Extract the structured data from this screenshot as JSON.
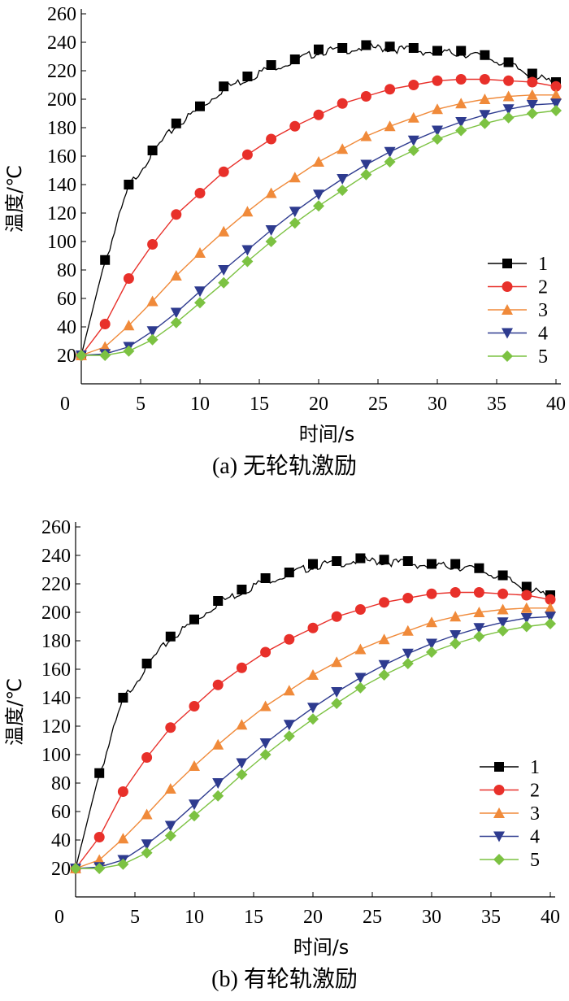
{
  "chart_data": [
    {
      "type": "line",
      "caption": "(a)  无轮轨激励",
      "xlabel": "时间/s",
      "ylabel": "温度/℃",
      "xlim": [
        0,
        40
      ],
      "ylim": [
        0,
        260
      ],
      "xticks": [
        "0",
        "5",
        "10",
        "15",
        "20",
        "25",
        "30",
        "35",
        "40"
      ],
      "yticks": [
        "20",
        "40",
        "60",
        "80",
        "100",
        "120",
        "140",
        "160",
        "180",
        "200",
        "220",
        "240",
        "260"
      ],
      "legend_position": "right",
      "series": [
        {
          "name": "1",
          "color": "#000000",
          "marker": "square",
          "x": [
            0,
            2,
            4,
            6,
            8,
            10,
            12,
            14,
            16,
            18,
            20,
            22,
            24,
            26,
            28,
            30,
            32,
            34,
            36,
            38,
            40
          ],
          "y": [
            20,
            87,
            140,
            164,
            183,
            195,
            209,
            216,
            224,
            228,
            235,
            236,
            238,
            237,
            236,
            234,
            234,
            231,
            226,
            218,
            212
          ]
        },
        {
          "name": "2",
          "color": "#e8302a",
          "marker": "circle",
          "x": [
            0,
            2,
            4,
            6,
            8,
            10,
            12,
            14,
            16,
            18,
            20,
            22,
            24,
            26,
            28,
            30,
            32,
            34,
            36,
            38,
            40
          ],
          "y": [
            20,
            42,
            74,
            98,
            119,
            134,
            149,
            161,
            172,
            181,
            189,
            197,
            202,
            207,
            210,
            213,
            214,
            214,
            213,
            212,
            209
          ]
        },
        {
          "name": "3",
          "color": "#f08a3a",
          "marker": "triangle-up",
          "x": [
            0,
            2,
            4,
            6,
            8,
            10,
            12,
            14,
            16,
            18,
            20,
            22,
            24,
            26,
            28,
            30,
            32,
            34,
            36,
            38,
            40
          ],
          "y": [
            20,
            26,
            41,
            58,
            76,
            92,
            107,
            121,
            134,
            145,
            156,
            165,
            174,
            181,
            187,
            193,
            197,
            200,
            202,
            203,
            203
          ]
        },
        {
          "name": "4",
          "color": "#2e3b8f",
          "marker": "triangle-down",
          "x": [
            0,
            2,
            4,
            6,
            8,
            10,
            12,
            14,
            16,
            18,
            20,
            22,
            24,
            26,
            28,
            30,
            32,
            34,
            36,
            38,
            40
          ],
          "y": [
            20,
            21,
            26,
            37,
            50,
            65,
            80,
            94,
            108,
            121,
            133,
            144,
            154,
            163,
            171,
            178,
            184,
            189,
            193,
            196,
            197
          ]
        },
        {
          "name": "5",
          "color": "#7cc242",
          "marker": "diamond",
          "x": [
            0,
            2,
            4,
            6,
            8,
            10,
            12,
            14,
            16,
            18,
            20,
            22,
            24,
            26,
            28,
            30,
            32,
            34,
            36,
            38,
            40
          ],
          "y": [
            20,
            20,
            23,
            31,
            43,
            57,
            71,
            86,
            100,
            113,
            125,
            136,
            147,
            156,
            164,
            172,
            178,
            183,
            187,
            190,
            192
          ]
        }
      ]
    },
    {
      "type": "line",
      "caption": "(b)  有轮轨激励",
      "xlabel": "时间/s",
      "ylabel": "温度/℃",
      "xlim": [
        0,
        40
      ],
      "ylim": [
        0,
        260
      ],
      "xticks": [
        "0",
        "5",
        "10",
        "15",
        "20",
        "25",
        "30",
        "35",
        "40"
      ],
      "yticks": [
        "20",
        "40",
        "60",
        "80",
        "100",
        "120",
        "140",
        "160",
        "180",
        "200",
        "220",
        "240",
        "260"
      ],
      "legend_position": "right",
      "series": [
        {
          "name": "1",
          "color": "#000000",
          "marker": "square",
          "x": [
            0,
            2,
            4,
            6,
            8,
            10,
            12,
            14,
            16,
            18,
            20,
            22,
            24,
            26,
            28,
            30,
            32,
            34,
            36,
            38,
            40
          ],
          "y": [
            20,
            87,
            140,
            164,
            183,
            195,
            208,
            216,
            224,
            228,
            234,
            236,
            238,
            237,
            236,
            234,
            234,
            231,
            226,
            218,
            212
          ]
        },
        {
          "name": "2",
          "color": "#e8302a",
          "marker": "circle",
          "x": [
            0,
            2,
            4,
            6,
            8,
            10,
            12,
            14,
            16,
            18,
            20,
            22,
            24,
            26,
            28,
            30,
            32,
            34,
            36,
            38,
            40
          ],
          "y": [
            20,
            42,
            74,
            98,
            119,
            134,
            149,
            161,
            172,
            181,
            189,
            197,
            202,
            207,
            210,
            213,
            214,
            214,
            213,
            212,
            209
          ]
        },
        {
          "name": "3",
          "color": "#f08a3a",
          "marker": "triangle-up",
          "x": [
            0,
            2,
            4,
            6,
            8,
            10,
            12,
            14,
            16,
            18,
            20,
            22,
            24,
            26,
            28,
            30,
            32,
            34,
            36,
            38,
            40
          ],
          "y": [
            20,
            26,
            41,
            58,
            76,
            92,
            107,
            121,
            134,
            145,
            156,
            165,
            174,
            181,
            187,
            193,
            197,
            200,
            202,
            203,
            203
          ]
        },
        {
          "name": "4",
          "color": "#2e3b8f",
          "marker": "triangle-down",
          "x": [
            0,
            2,
            4,
            6,
            8,
            10,
            12,
            14,
            16,
            18,
            20,
            22,
            24,
            26,
            28,
            30,
            32,
            34,
            36,
            38,
            40
          ],
          "y": [
            20,
            21,
            26,
            37,
            50,
            65,
            80,
            94,
            108,
            121,
            133,
            144,
            154,
            163,
            171,
            178,
            184,
            189,
            193,
            196,
            197
          ]
        },
        {
          "name": "5",
          "color": "#7cc242",
          "marker": "diamond",
          "x": [
            0,
            2,
            4,
            6,
            8,
            10,
            12,
            14,
            16,
            18,
            20,
            22,
            24,
            26,
            28,
            30,
            32,
            34,
            36,
            38,
            40
          ],
          "y": [
            20,
            20,
            23,
            31,
            43,
            57,
            71,
            86,
            100,
            113,
            125,
            136,
            147,
            156,
            164,
            172,
            178,
            183,
            187,
            190,
            192
          ]
        }
      ]
    }
  ]
}
